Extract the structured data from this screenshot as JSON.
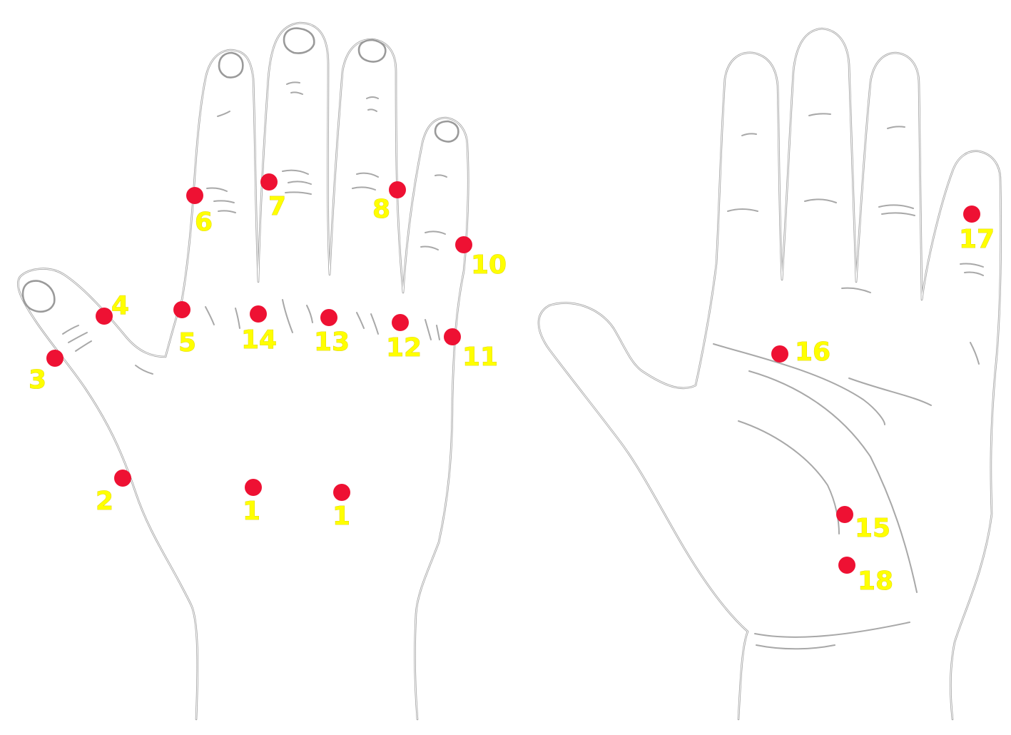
{
  "colors": {
    "background": "#ffffff",
    "hand_outline": "#9a9a9a",
    "point_dot": "#ee1133",
    "point_label": "#ffff00"
  },
  "points": [
    {
      "label": "1",
      "hand": "back"
    },
    {
      "label": "1",
      "hand": "back"
    },
    {
      "label": "2",
      "hand": "back"
    },
    {
      "label": "3",
      "hand": "back"
    },
    {
      "label": "4",
      "hand": "back"
    },
    {
      "label": "5",
      "hand": "back"
    },
    {
      "label": "6",
      "hand": "back"
    },
    {
      "label": "7",
      "hand": "back"
    },
    {
      "label": "8",
      "hand": "back"
    },
    {
      "label": "10",
      "hand": "back"
    },
    {
      "label": "11",
      "hand": "back"
    },
    {
      "label": "12",
      "hand": "back"
    },
    {
      "label": "13",
      "hand": "back"
    },
    {
      "label": "14",
      "hand": "back"
    },
    {
      "label": "15",
      "hand": "palm"
    },
    {
      "label": "16",
      "hand": "palm"
    },
    {
      "label": "17",
      "hand": "palm"
    },
    {
      "label": "18",
      "hand": "palm"
    }
  ]
}
